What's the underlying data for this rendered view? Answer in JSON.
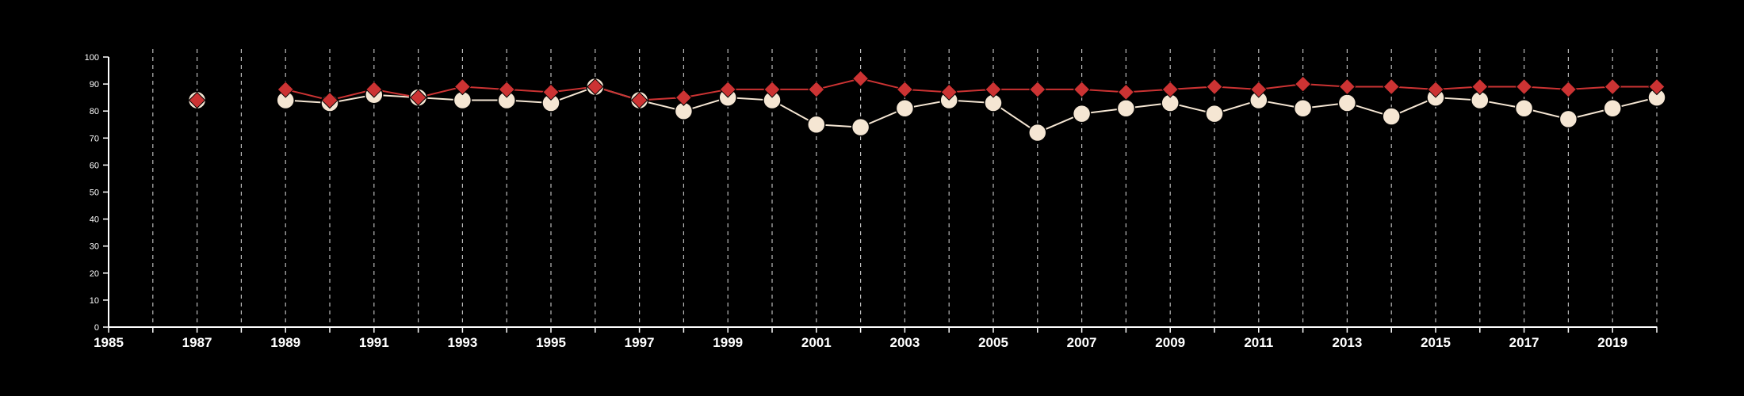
{
  "chart_data": {
    "type": "line",
    "title": "",
    "xlabel": "",
    "ylabel": "",
    "xlim": [
      1985,
      2020
    ],
    "ylim": [
      0,
      100
    ],
    "x_ticks": [
      "1985",
      "1987",
      "1989",
      "1991",
      "1993",
      "1995",
      "1997",
      "1999",
      "2001",
      "2003",
      "2005",
      "2007",
      "2009",
      "2011",
      "2013",
      "2015",
      "2017",
      "2019"
    ],
    "y_ticks": [
      "0",
      "10",
      "20",
      "30",
      "40",
      "50",
      "60",
      "70",
      "80",
      "90",
      "100"
    ],
    "grid": {
      "vertical_dashed": true,
      "every_year": true
    },
    "legend": "none",
    "colors": {
      "background": "#000000",
      "axis": "#ffffff",
      "grid": "#bbbbbb",
      "series_circle": "#f5e6d3",
      "series_diamond": "#cc3333"
    },
    "series": [
      {
        "marker": "circle",
        "color": "#f5e6d3",
        "points": [
          {
            "x": 1987,
            "y": 84
          },
          {
            "x": 1989,
            "y": 84
          },
          {
            "x": 1990,
            "y": 83
          },
          {
            "x": 1991,
            "y": 86
          },
          {
            "x": 1992,
            "y": 85
          },
          {
            "x": 1993,
            "y": 84
          },
          {
            "x": 1994,
            "y": 84
          },
          {
            "x": 1995,
            "y": 83
          },
          {
            "x": 1996,
            "y": 89
          },
          {
            "x": 1997,
            "y": 84
          },
          {
            "x": 1998,
            "y": 80
          },
          {
            "x": 1999,
            "y": 85
          },
          {
            "x": 2000,
            "y": 84
          },
          {
            "x": 2001,
            "y": 75
          },
          {
            "x": 2002,
            "y": 74
          },
          {
            "x": 2003,
            "y": 81
          },
          {
            "x": 2004,
            "y": 84
          },
          {
            "x": 2005,
            "y": 83
          },
          {
            "x": 2006,
            "y": 72
          },
          {
            "x": 2007,
            "y": 79
          },
          {
            "x": 2008,
            "y": 81
          },
          {
            "x": 2009,
            "y": 83
          },
          {
            "x": 2010,
            "y": 79
          },
          {
            "x": 2011,
            "y": 84
          },
          {
            "x": 2012,
            "y": 81
          },
          {
            "x": 2013,
            "y": 83
          },
          {
            "x": 2014,
            "y": 78
          },
          {
            "x": 2015,
            "y": 85
          },
          {
            "x": 2016,
            "y": 84
          },
          {
            "x": 2017,
            "y": 81
          },
          {
            "x": 2018,
            "y": 77
          },
          {
            "x": 2019,
            "y": 81
          },
          {
            "x": 2020,
            "y": 85
          }
        ]
      },
      {
        "marker": "diamond",
        "color": "#cc3333",
        "points": [
          {
            "x": 1987,
            "y": 84
          },
          {
            "x": 1989,
            "y": 88
          },
          {
            "x": 1990,
            "y": 84
          },
          {
            "x": 1991,
            "y": 88
          },
          {
            "x": 1992,
            "y": 85
          },
          {
            "x": 1993,
            "y": 89
          },
          {
            "x": 1994,
            "y": 88
          },
          {
            "x": 1995,
            "y": 87
          },
          {
            "x": 1996,
            "y": 89
          },
          {
            "x": 1997,
            "y": 84
          },
          {
            "x": 1998,
            "y": 85
          },
          {
            "x": 1999,
            "y": 88
          },
          {
            "x": 2000,
            "y": 88
          },
          {
            "x": 2001,
            "y": 88
          },
          {
            "x": 2002,
            "y": 92
          },
          {
            "x": 2003,
            "y": 88
          },
          {
            "x": 2004,
            "y": 87
          },
          {
            "x": 2005,
            "y": 88
          },
          {
            "x": 2006,
            "y": 88
          },
          {
            "x": 2007,
            "y": 88
          },
          {
            "x": 2008,
            "y": 87
          },
          {
            "x": 2009,
            "y": 88
          },
          {
            "x": 2010,
            "y": 89
          },
          {
            "x": 2011,
            "y": 88
          },
          {
            "x": 2012,
            "y": 90
          },
          {
            "x": 2013,
            "y": 89
          },
          {
            "x": 2014,
            "y": 89
          },
          {
            "x": 2015,
            "y": 88
          },
          {
            "x": 2016,
            "y": 89
          },
          {
            "x": 2017,
            "y": 89
          },
          {
            "x": 2018,
            "y": 88
          },
          {
            "x": 2019,
            "y": 89
          },
          {
            "x": 2020,
            "y": 89
          }
        ]
      }
    ]
  }
}
